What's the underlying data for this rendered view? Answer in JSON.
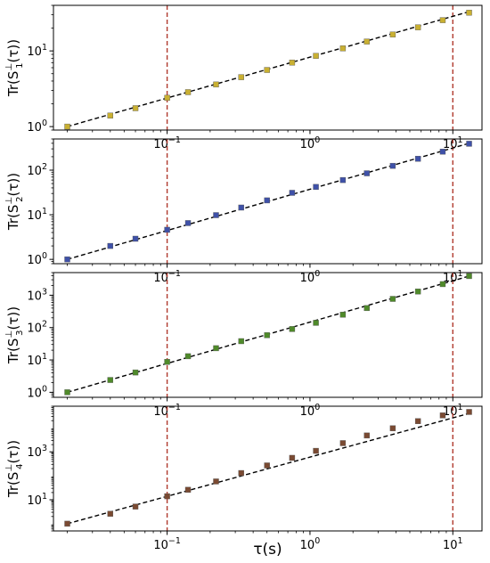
{
  "figure": {
    "xlabel": "τ(s)"
  },
  "chart_data": [
    {
      "type": "scatter",
      "id": "S1",
      "ylabel_main": "Tr(S",
      "ylabel_sup": "⊥",
      "ylabel_sub": "1",
      "ylabel_tail": "(τ))",
      "log_x": true,
      "log_y": true,
      "xlim": [
        0.016,
        16
      ],
      "ylim": [
        0.9,
        40
      ],
      "x_ticks": [
        {
          "value": 0.1,
          "label": "10",
          "exp": "−1"
        },
        {
          "value": 1,
          "label": "10",
          "exp": "0"
        },
        {
          "value": 10,
          "label": "10",
          "exp": "1"
        }
      ],
      "y_ticks": [
        {
          "value": 1,
          "label": "10",
          "exp": "0"
        },
        {
          "value": 10,
          "label": "10",
          "exp": "1"
        }
      ],
      "marker_color": "#c9b032",
      "vlines": [
        0.1,
        10
      ],
      "vline_color": "#b03a2e",
      "fit": {
        "x": [
          0.02,
          13
        ],
        "y": [
          1.0,
          33
        ]
      },
      "x": [
        0.02,
        0.04,
        0.06,
        0.1,
        0.14,
        0.22,
        0.33,
        0.5,
        0.75,
        1.1,
        1.7,
        2.5,
        3.8,
        5.7,
        8.5,
        13
      ],
      "y": [
        1.0,
        1.4,
        1.75,
        2.4,
        2.85,
        3.6,
        4.5,
        5.6,
        7.0,
        8.6,
        10.8,
        13.3,
        16.5,
        20.5,
        25.5,
        32
      ]
    },
    {
      "type": "scatter",
      "id": "S2",
      "ylabel_main": "Tr(S",
      "ylabel_sup": "⊥",
      "ylabel_sub": "2",
      "ylabel_tail": "(τ))",
      "log_x": true,
      "log_y": true,
      "xlim": [
        0.016,
        16
      ],
      "ylim": [
        0.8,
        500
      ],
      "x_ticks": [
        {
          "value": 0.1,
          "label": "10",
          "exp": "−1"
        },
        {
          "value": 1,
          "label": "10",
          "exp": "0"
        },
        {
          "value": 10,
          "label": "10",
          "exp": "1"
        }
      ],
      "y_ticks": [
        {
          "value": 1,
          "label": "10",
          "exp": "0"
        },
        {
          "value": 10,
          "label": "10",
          "exp": "1"
        },
        {
          "value": 100,
          "label": "10",
          "exp": "2"
        }
      ],
      "marker_color": "#3f51a8",
      "vlines": [
        0.1,
        10
      ],
      "vline_color": "#b03a2e",
      "fit": {
        "x": [
          0.02,
          13
        ],
        "y": [
          1.0,
          400
        ]
      },
      "x": [
        0.02,
        0.04,
        0.06,
        0.1,
        0.14,
        0.22,
        0.33,
        0.5,
        0.75,
        1.1,
        1.7,
        2.5,
        3.8,
        5.7,
        8.5,
        13
      ],
      "y": [
        1.0,
        2.0,
        2.9,
        4.6,
        6.5,
        9.8,
        14.5,
        21,
        31,
        42,
        60,
        85,
        125,
        180,
        260,
        390
      ]
    },
    {
      "type": "scatter",
      "id": "S3",
      "ylabel_main": "Tr(S",
      "ylabel_sup": "⊥",
      "ylabel_sub": "3",
      "ylabel_tail": "(τ))",
      "log_x": true,
      "log_y": true,
      "xlim": [
        0.016,
        16
      ],
      "ylim": [
        0.7,
        5000
      ],
      "x_ticks": [
        {
          "value": 0.1,
          "label": "10",
          "exp": "−1"
        },
        {
          "value": 1,
          "label": "10",
          "exp": "0"
        },
        {
          "value": 10,
          "label": "10",
          "exp": "1"
        }
      ],
      "y_ticks": [
        {
          "value": 1,
          "label": "10",
          "exp": "0"
        },
        {
          "value": 10,
          "label": "10",
          "exp": "1"
        },
        {
          "value": 100,
          "label": "10",
          "exp": "2"
        },
        {
          "value": 1000,
          "label": "10",
          "exp": "3"
        }
      ],
      "marker_color": "#4f8a2a",
      "vlines": [
        0.1,
        10
      ],
      "vline_color": "#b03a2e",
      "fit": {
        "x": [
          0.02,
          13
        ],
        "y": [
          1.0,
          3900
        ]
      },
      "x": [
        0.02,
        0.04,
        0.06,
        0.1,
        0.14,
        0.22,
        0.33,
        0.5,
        0.75,
        1.1,
        1.7,
        2.5,
        3.8,
        5.7,
        8.5,
        13
      ],
      "y": [
        1.0,
        2.4,
        4.1,
        8.7,
        13,
        23,
        38,
        58,
        90,
        140,
        250,
        400,
        770,
        1300,
        2200,
        3900
      ]
    },
    {
      "type": "scatter",
      "id": "S4",
      "ylabel_main": "Tr(S",
      "ylabel_sup": "⊥",
      "ylabel_sub": "4",
      "ylabel_tail": "(τ))",
      "log_x": true,
      "log_y": true,
      "xlim": [
        0.016,
        16
      ],
      "ylim": [
        0.5,
        80000
      ],
      "x_ticks": [
        {
          "value": 0.1,
          "label": "10",
          "exp": "−1"
        },
        {
          "value": 1,
          "label": "10",
          "exp": "0"
        },
        {
          "value": 10,
          "label": "10",
          "exp": "1"
        }
      ],
      "y_ticks": [
        {
          "value": 10,
          "label": "10",
          "exp": "1"
        },
        {
          "value": 1000,
          "label": "10",
          "exp": "3"
        }
      ],
      "marker_color": "#7a4a32",
      "vlines": [
        0.1,
        10
      ],
      "vline_color": "#b03a2e",
      "fit": {
        "x": [
          0.02,
          13
        ],
        "y": [
          1.0,
          40000
        ]
      },
      "x": [
        0.02,
        0.04,
        0.06,
        0.1,
        0.14,
        0.22,
        0.33,
        0.5,
        0.75,
        1.1,
        1.7,
        2.5,
        3.8,
        5.7,
        8.5,
        13
      ],
      "y": [
        1.0,
        2.6,
        5.2,
        14,
        26,
        58,
        130,
        270,
        560,
        1100,
        2300,
        4800,
        9600,
        19000,
        33000,
        46000
      ]
    }
  ]
}
